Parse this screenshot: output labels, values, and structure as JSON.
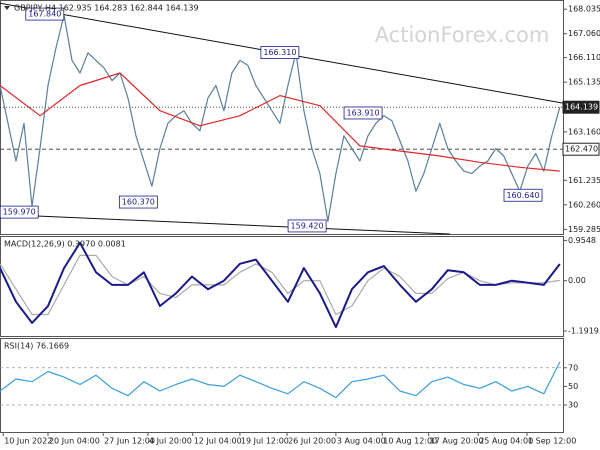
{
  "chart_data": [
    {
      "type": "line",
      "title": "GBPJPY,H4  162.935 164.283 162.844 164.139",
      "watermark": "ActionForex.com",
      "xlim": [
        0,
        70.4
      ],
      "ylim": [
        159.1,
        168.4
      ],
      "yticks": [
        {
          "value": 168.035,
          "label": "168.035"
        },
        {
          "value": 167.06,
          "label": "167.060"
        },
        {
          "value": 166.11,
          "label": "166.110"
        },
        {
          "value": 165.135,
          "label": "165.135"
        },
        {
          "value": 163.16,
          "label": "163.160"
        },
        {
          "value": 161.235,
          "label": "161.235"
        },
        {
          "value": 160.26,
          "label": "160.260"
        },
        {
          "value": 159.285,
          "label": "159.285"
        }
      ],
      "x": [
        0,
        1,
        2,
        3,
        4,
        5,
        6,
        7,
        8,
        9,
        10,
        11,
        12,
        13,
        14,
        15,
        16,
        17,
        18,
        19,
        20,
        21,
        22,
        23,
        24,
        25,
        26,
        27,
        28,
        29,
        30,
        31,
        32,
        33,
        34,
        35,
        36,
        37,
        38,
        39,
        40,
        41,
        42,
        43,
        44,
        45,
        46,
        47,
        48,
        49,
        50,
        51,
        52,
        53,
        54,
        55,
        56,
        57,
        58,
        59,
        60,
        61,
        62,
        63,
        64,
        65,
        66,
        67,
        68,
        69,
        70
      ],
      "series": [
        {
          "color": "#5b7f9e",
          "values": [
            165.0,
            163.5,
            162.0,
            163.5,
            160.2,
            162.5,
            165.0,
            166.5,
            167.8,
            166.0,
            165.5,
            166.3,
            166.0,
            165.7,
            165.2,
            165.5,
            164.5,
            163.0,
            162.0,
            161.0,
            162.5,
            163.5,
            163.8,
            164.0,
            163.5,
            163.2,
            164.5,
            165.0,
            164.0,
            165.5,
            166.0,
            165.8,
            165.0,
            164.5,
            164.0,
            163.5,
            165.0,
            166.3,
            164.0,
            162.5,
            161.5,
            159.6,
            161.5,
            163.0,
            162.5,
            162.0,
            163.0,
            163.5,
            163.8,
            163.6,
            162.8,
            162.0,
            160.8,
            161.5,
            162.5,
            163.5,
            162.5,
            162.0,
            161.6,
            161.5,
            161.8,
            162.0,
            162.5,
            162.2,
            161.5,
            160.8,
            161.8,
            162.3,
            161.6,
            163.0,
            164.139
          ]
        },
        {
          "color": "#e02828",
          "x": [
            0,
            5,
            10,
            15,
            20,
            25,
            30,
            35,
            40,
            45,
            50,
            55,
            60,
            65,
            70
          ],
          "values": [
            165.0,
            163.8,
            165.0,
            165.5,
            164.0,
            163.4,
            163.8,
            164.6,
            164.2,
            162.6,
            162.4,
            162.2,
            161.95,
            161.75,
            161.6
          ]
        }
      ],
      "trendlines": [
        {
          "x": [
            0,
            70.4
          ],
          "values": [
            168.27,
            164.3
          ]
        },
        {
          "x": [
            0,
            56.25
          ],
          "values": [
            159.88,
            159.1
          ]
        }
      ],
      "price_lines": [
        {
          "value": 164.139,
          "label": "164.139",
          "style": "dotted"
        },
        {
          "value": 162.47,
          "label": "162.470",
          "style": "dashed"
        }
      ],
      "annotations": [
        {
          "x": 5.6,
          "value": 167.84,
          "label": "167.840"
        },
        {
          "x": 35,
          "value": 166.31,
          "label": "166.310"
        },
        {
          "x": 45.4,
          "value": 163.91,
          "label": "163.910"
        },
        {
          "x": 17.3,
          "value": 160.37,
          "label": "160.370"
        },
        {
          "x": 2.4,
          "value": 159.97,
          "label": "159.970"
        },
        {
          "x": 38.4,
          "value": 159.42,
          "label": "159.420"
        },
        {
          "x": 65.4,
          "value": 160.64,
          "label": "160.640"
        }
      ]
    },
    {
      "type": "line",
      "title": "MACD(12,26,9) 0.3970 0.0081",
      "xlim": [
        0,
        70.4
      ],
      "ylim": [
        -1.31,
        1.06
      ],
      "yticks": [
        0.9548,
        {
          "value": 0,
          "label": "0.00"
        },
        -1.1919
      ],
      "x": [
        0,
        2,
        4,
        6,
        8,
        10,
        12,
        14,
        16,
        18,
        20,
        22,
        24,
        26,
        28,
        30,
        32,
        34,
        36,
        38,
        40,
        42,
        44,
        46,
        48,
        50,
        52,
        54,
        56,
        58,
        60,
        62,
        64,
        66,
        68,
        70
      ],
      "series": [
        {
          "color": "#aaaaaa",
          "values": [
            0.4,
            -0.2,
            -0.8,
            -0.8,
            -0.1,
            0.6,
            0.6,
            0.1,
            -0.1,
            0.1,
            -0.3,
            -0.4,
            -0.1,
            -0.1,
            -0.1,
            0.2,
            0.4,
            0.2,
            -0.3,
            0.0,
            0.0,
            -0.8,
            -0.6,
            0.0,
            0.3,
            0.1,
            -0.3,
            -0.3,
            0.05,
            0.2,
            0.0,
            -0.1,
            -0.05,
            -0.05,
            -0.05,
            0.0081
          ]
        },
        {
          "color": "#1a1a8c",
          "width": 2,
          "values": [
            0.3,
            -0.5,
            -1.0,
            -0.6,
            0.3,
            0.9,
            0.2,
            -0.1,
            -0.1,
            0.2,
            -0.6,
            -0.3,
            0.1,
            -0.2,
            0.0,
            0.4,
            0.5,
            0.0,
            -0.5,
            0.3,
            -0.3,
            -1.1,
            -0.2,
            0.2,
            0.35,
            -0.1,
            -0.5,
            -0.2,
            0.25,
            0.2,
            -0.1,
            -0.1,
            0.0,
            -0.05,
            -0.1,
            0.397
          ]
        }
      ]
    },
    {
      "type": "line",
      "title": "RSI(14) 76.1669",
      "xlim": [
        0,
        70.4
      ],
      "ylim": [
        1,
        102
      ],
      "yticks": [
        70,
        50,
        30
      ],
      "dashed_lines": [
        70,
        30
      ],
      "x": [
        0,
        2,
        4,
        6,
        8,
        10,
        12,
        14,
        16,
        18,
        20,
        22,
        24,
        26,
        28,
        30,
        32,
        34,
        36,
        38,
        40,
        42,
        44,
        46,
        48,
        50,
        52,
        54,
        56,
        58,
        60,
        62,
        64,
        66,
        68,
        70
      ],
      "series": [
        {
          "color": "#3a9fe0",
          "values": [
            45,
            58,
            55,
            66,
            60,
            52,
            62,
            48,
            40,
            55,
            45,
            52,
            58,
            52,
            50,
            62,
            55,
            48,
            42,
            55,
            48,
            38,
            55,
            58,
            62,
            45,
            40,
            55,
            60,
            52,
            48,
            55,
            45,
            50,
            42,
            76.1669
          ]
        }
      ],
      "xticks": [
        {
          "value": 0.4,
          "label": "10 Jun 2022"
        },
        {
          "value": 6,
          "label": "20 Jun 04:00"
        },
        {
          "value": 12.9,
          "label": "27 Jun 12:00"
        },
        {
          "value": 18.5,
          "label": "4 Jul 20:00"
        },
        {
          "value": 24.1,
          "label": "12 Jul 04:00"
        },
        {
          "value": 30,
          "label": "19 Jul 12:00"
        },
        {
          "value": 35.9,
          "label": "26 Jul 20:00"
        },
        {
          "value": 42,
          "label": "3 Aug 04:00"
        },
        {
          "value": 47.8,
          "label": "10 Aug 12:00"
        },
        {
          "value": 53.6,
          "label": "17 Aug 20:00"
        },
        {
          "value": 59.8,
          "label": "25 Aug 04:00"
        },
        {
          "value": 65.9,
          "label": "1 Sep 12:00"
        }
      ]
    }
  ]
}
